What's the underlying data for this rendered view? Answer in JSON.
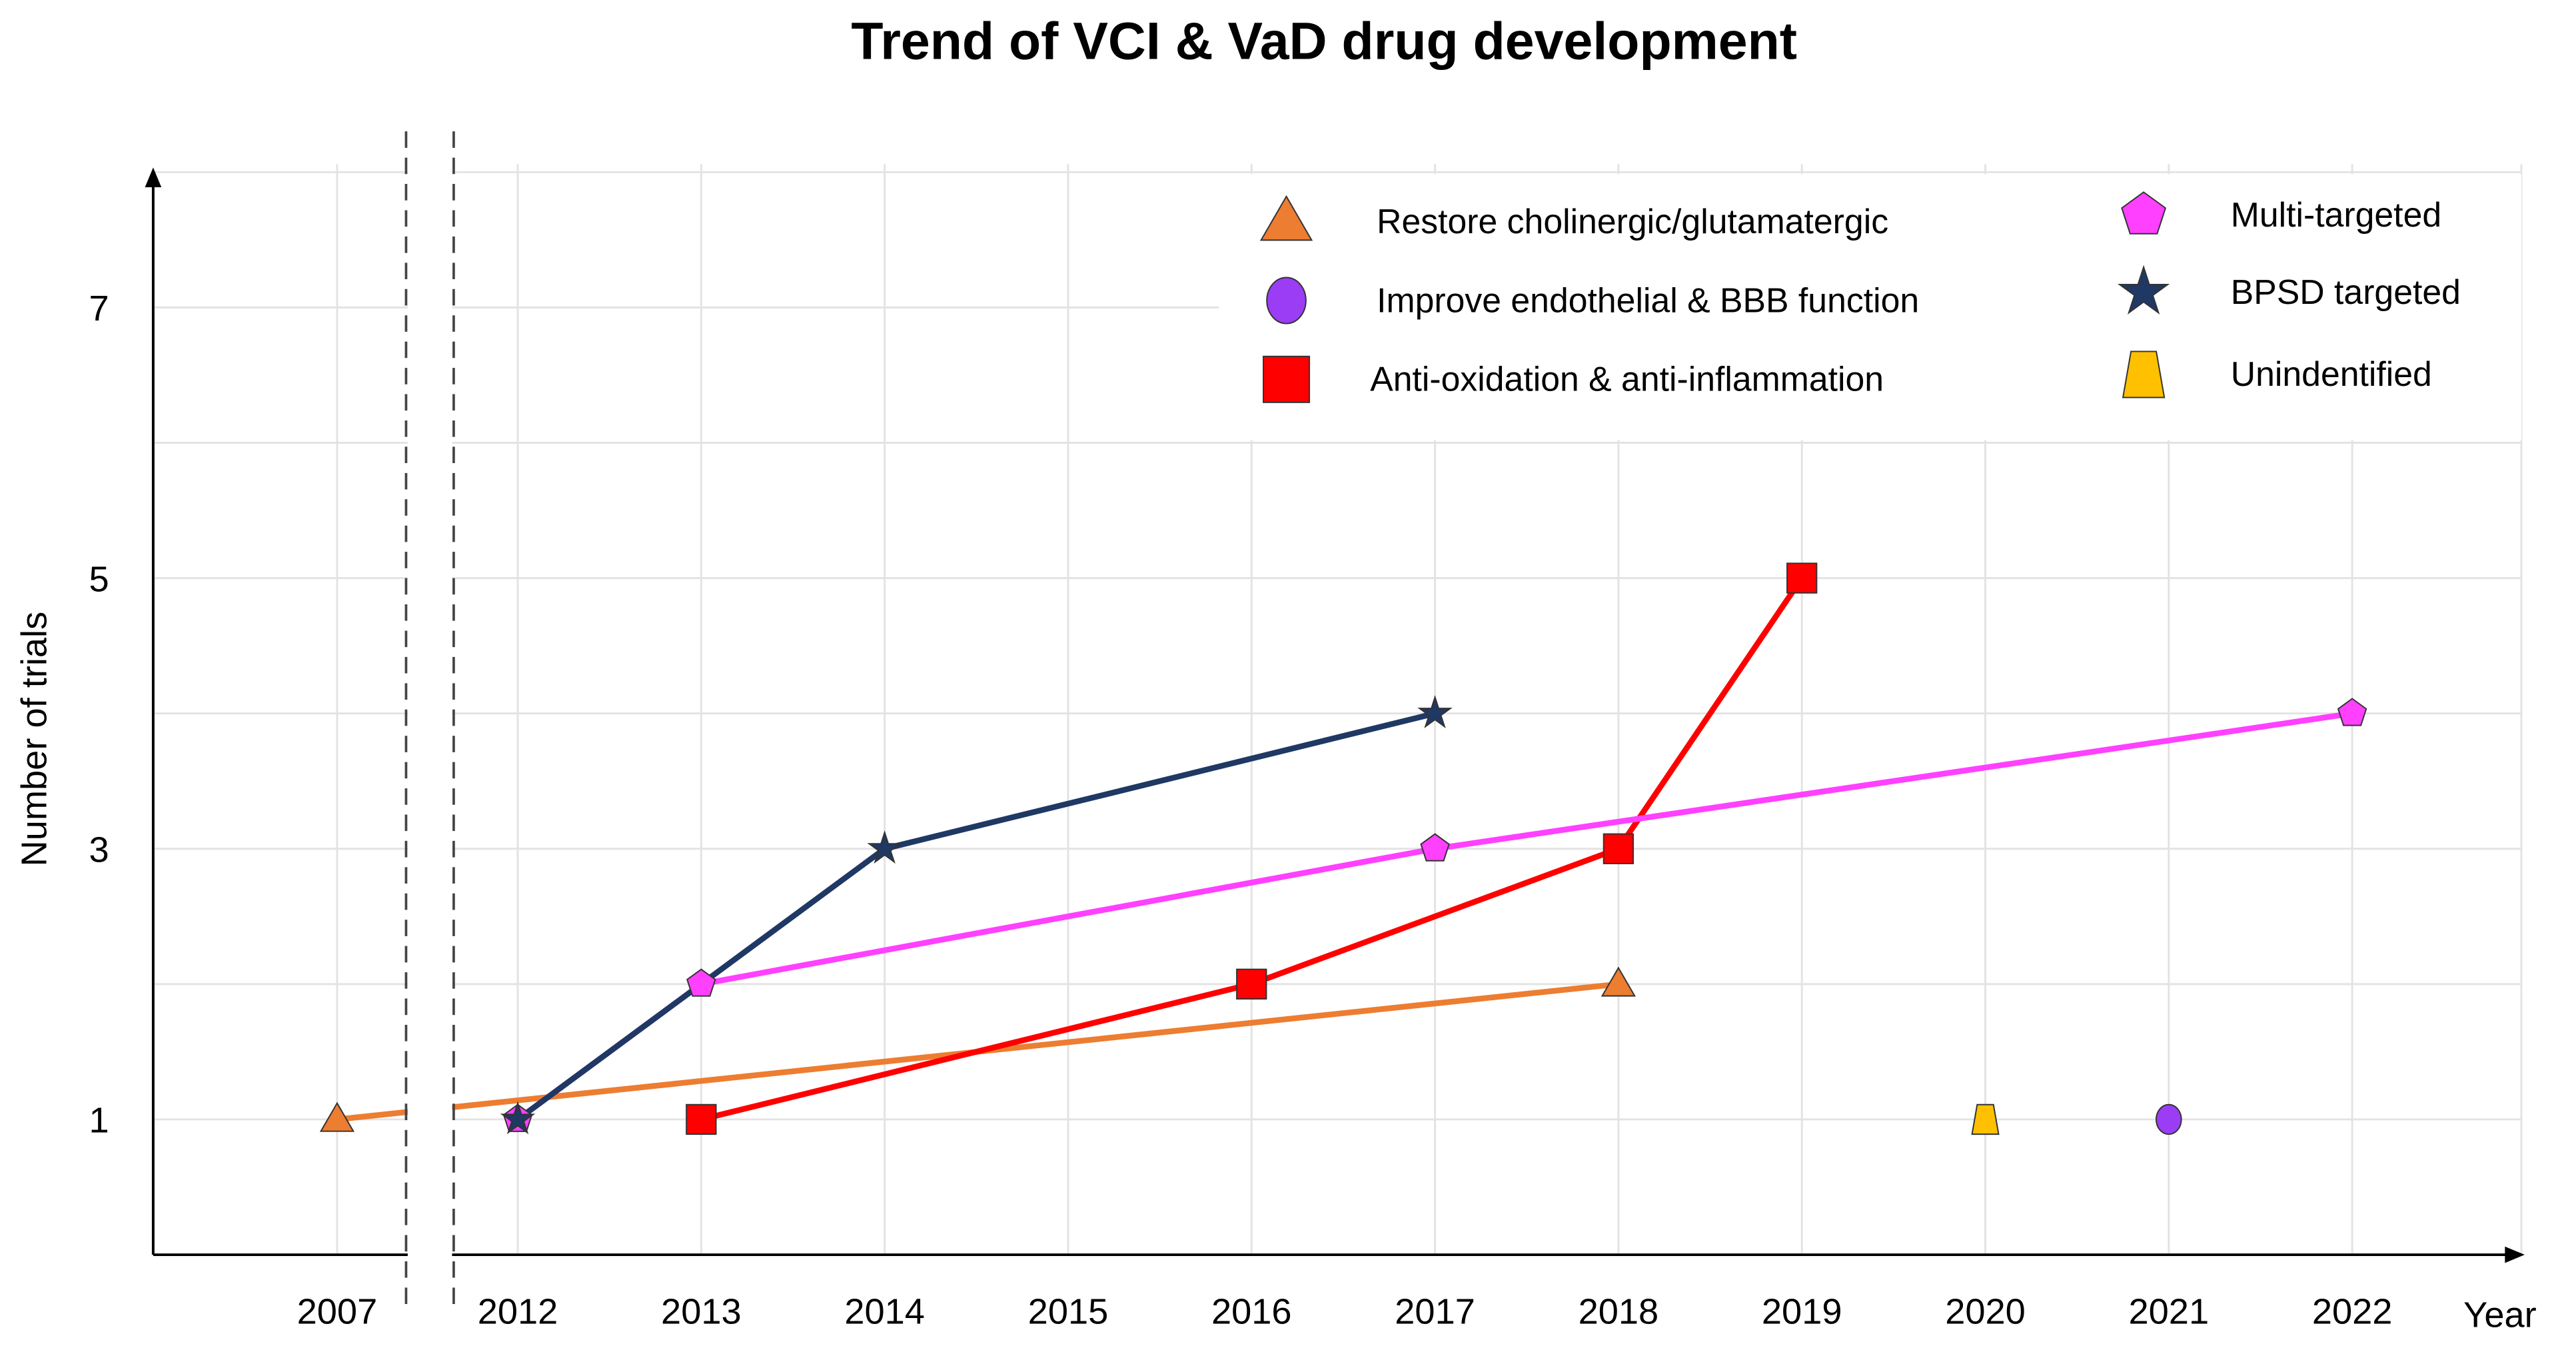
{
  "chart_data": {
    "type": "line",
    "title": "Trend of VCI & VaD drug development",
    "xlabel": "Year",
    "ylabel": "Number of trials",
    "x_ticks": [
      "2007",
      "2012",
      "2013",
      "2014",
      "2015",
      "2016",
      "2017",
      "2018",
      "2019",
      "2020",
      "2021",
      "2022"
    ],
    "y_ticks": [
      "1",
      "3",
      "5",
      "7"
    ],
    "ylim": [
      0,
      8
    ],
    "axis_break": "between 2007 and 2012",
    "grid": true,
    "legend_position": "top-right",
    "series": [
      {
        "name": "Restore cholinergic/glutamatergic",
        "marker": "triangle",
        "color": "#ED7D31",
        "points": [
          [
            2007,
            1
          ],
          [
            2018,
            2
          ]
        ]
      },
      {
        "name": "Improve endothelial & BBB function",
        "marker": "circle",
        "color": "#9B3DF5",
        "points": [
          [
            2021,
            1
          ]
        ]
      },
      {
        "name": "Anti-oxidation & anti-inflammation",
        "marker": "square",
        "color": "#FF0000",
        "points": [
          [
            2013,
            1
          ],
          [
            2016,
            2
          ],
          [
            2018,
            3
          ],
          [
            2019,
            5
          ]
        ]
      },
      {
        "name": "Multi-targeted",
        "marker": "pentagon",
        "color": "#FF40FF",
        "points": [
          [
            2012,
            1
          ],
          [
            2013,
            2
          ],
          [
            2017,
            3
          ],
          [
            2022,
            4
          ]
        ]
      },
      {
        "name": "BPSD targeted",
        "marker": "star",
        "color": "#1F3864",
        "points": [
          [
            2012,
            1
          ],
          [
            2014,
            3
          ],
          [
            2017,
            4
          ]
        ]
      },
      {
        "name": "Unindentified",
        "marker": "trapezoid",
        "color": "#FFC000",
        "points": [
          [
            2020,
            1
          ]
        ]
      }
    ]
  }
}
